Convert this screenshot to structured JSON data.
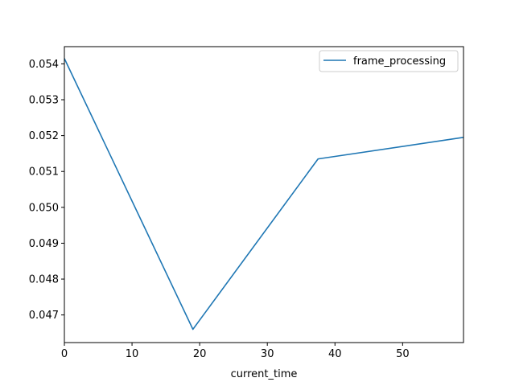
{
  "chart_data": {
    "type": "line",
    "title": "",
    "xlabel": "current_time",
    "ylabel": "",
    "xlim": [
      0,
      59
    ],
    "ylim": [
      0.04623,
      0.05448
    ],
    "xticks": [
      0,
      10,
      20,
      30,
      40,
      50
    ],
    "xtick_labels": [
      "0",
      "10",
      "20",
      "30",
      "40",
      "50"
    ],
    "yticks": [
      0.047,
      0.048,
      0.049,
      0.05,
      0.051,
      0.052,
      0.053,
      0.054
    ],
    "ytick_labels": [
      "0.047",
      "0.048",
      "0.049",
      "0.050",
      "0.051",
      "0.052",
      "0.053",
      "0.054"
    ],
    "grid": false,
    "legend_position": "top-right",
    "series": [
      {
        "name": "frame_processing",
        "color": "#1f77b4",
        "x": [
          0,
          19,
          37.5,
          59
        ],
        "y": [
          0.05415,
          0.0466,
          0.05135,
          0.05195
        ]
      }
    ]
  }
}
